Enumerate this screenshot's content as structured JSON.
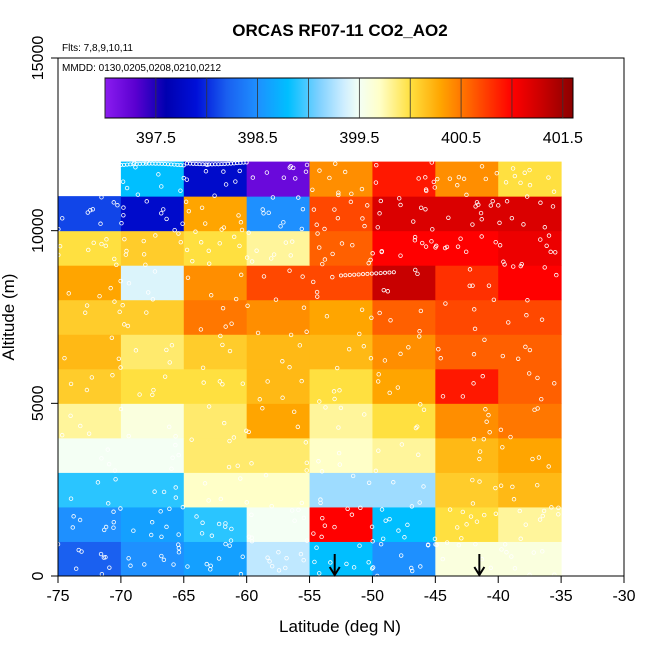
{
  "chart_data": {
    "type": "heatmap",
    "title": "ORCAS RF07-11 CO2_AO2",
    "flights_note": "Flts: 7,8,9,10,11",
    "dates_note": "MMDD: 0130,0205,0208,0210,0212",
    "xlabel": "Latitude (deg N)",
    "ylabel": "Altitude (m)",
    "xlim": [
      -75,
      -30
    ],
    "ylim": [
      0,
      15000
    ],
    "x_ticks": [
      -75,
      -70,
      -65,
      -60,
      -55,
      -50,
      -45,
      -40,
      -35,
      -30
    ],
    "x_tick_labels": [
      "-75",
      "-70",
      "-65",
      "-60",
      "-55",
      "-50",
      "-45",
      "-40",
      "-35",
      "-30"
    ],
    "y_ticks": [
      0,
      5000,
      10000,
      15000
    ],
    "y_tick_labels": [
      "0",
      "5000",
      "10000",
      "15000"
    ],
    "colorbar": {
      "range": [
        397.0,
        401.6
      ],
      "ticks": [
        397.5,
        398.5,
        399.5,
        400.5,
        401.5
      ],
      "tick_labels": [
        "397.5",
        "398.5",
        "399.5",
        "400.5",
        "401.5"
      ],
      "stops": [
        {
          "v": 397.0,
          "c": "#8b1cf0"
        },
        {
          "v": 397.3,
          "c": "#5a00d0"
        },
        {
          "v": 397.6,
          "c": "#0000b0"
        },
        {
          "v": 397.9,
          "c": "#0010d8"
        },
        {
          "v": 398.2,
          "c": "#1a60f0"
        },
        {
          "v": 398.5,
          "c": "#1e90ff"
        },
        {
          "v": 398.8,
          "c": "#00bfff"
        },
        {
          "v": 399.1,
          "c": "#7dd0ff"
        },
        {
          "v": 399.35,
          "c": "#cfeeff"
        },
        {
          "v": 399.5,
          "c": "#f4fff4"
        },
        {
          "v": 399.7,
          "c": "#ffffc8"
        },
        {
          "v": 400.0,
          "c": "#ffe040"
        },
        {
          "v": 400.3,
          "c": "#ffa500"
        },
        {
          "v": 400.6,
          "c": "#ff6000"
        },
        {
          "v": 401.0,
          "c": "#ff0000"
        },
        {
          "v": 401.3,
          "c": "#c80000"
        },
        {
          "v": 401.6,
          "c": "#8b0000"
        }
      ]
    },
    "grid": {
      "x_edges": [
        -75,
        -70,
        -65,
        -60,
        -55,
        -50,
        -45,
        -40,
        -35
      ],
      "y_edges": [
        0,
        1000,
        2000,
        3000,
        4000,
        5000,
        6000,
        7000,
        8000,
        9000,
        10000,
        11000,
        12000
      ],
      "values": [
        [
          398.2,
          398.5,
          398.6,
          399.3,
          398.8,
          398.5,
          399.6,
          399.6
        ],
        [
          398.5,
          398.6,
          398.9,
          399.5,
          401.0,
          398.8,
          400.0,
          399.8
        ],
        [
          398.9,
          398.9,
          399.7,
          399.7,
          399.2,
          399.2,
          400.1,
          400.2
        ],
        [
          399.5,
          399.5,
          399.9,
          399.9,
          399.7,
          399.8,
          400.2,
          400.3
        ],
        [
          399.8,
          399.6,
          399.9,
          400.3,
          399.8,
          400.0,
          400.4,
          400.5
        ],
        [
          400.1,
          400.0,
          400.0,
          400.2,
          400.0,
          400.3,
          400.9,
          400.6
        ],
        [
          400.2,
          399.9,
          400.1,
          400.2,
          400.2,
          400.4,
          400.6,
          400.6
        ],
        [
          400.1,
          400.1,
          400.5,
          400.4,
          400.3,
          400.6,
          400.7,
          400.7
        ],
        [
          400.3,
          399.4,
          400.4,
          400.7,
          400.7,
          401.3,
          400.8,
          401.0
        ],
        [
          400.0,
          400.1,
          400.0,
          399.8,
          400.6,
          401.0,
          401.0,
          401.1
        ],
        [
          398.1,
          397.8,
          400.3,
          398.5,
          400.7,
          401.2,
          401.2,
          401.2
        ],
        [
          null,
          398.8,
          397.8,
          397.2,
          400.4,
          400.9,
          400.4,
          400.0
        ]
      ]
    },
    "arrows_lat": [
      -53,
      -41.5
    ],
    "observation_marker": "white open circles along flight tracks"
  }
}
